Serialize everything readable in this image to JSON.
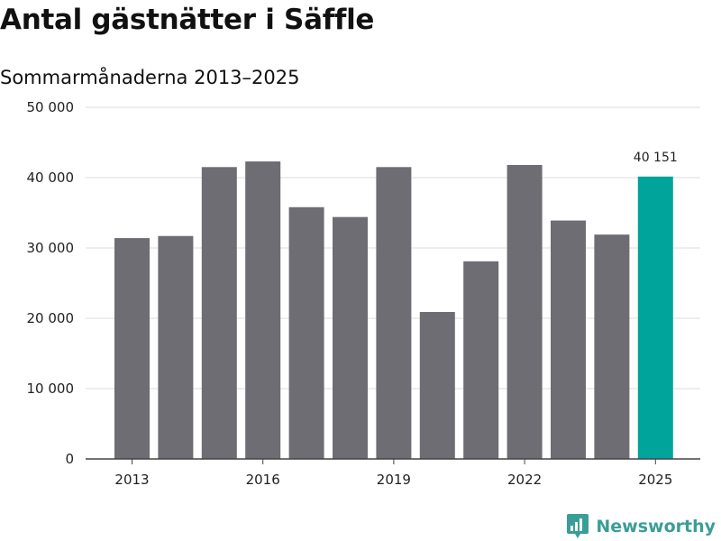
{
  "title": "Antal gästnätter i Säffle",
  "subtitle": "Sommarmånaderna 2013–2025",
  "brand": {
    "name": "Newsworthy",
    "icon": "newsworthy-logo-icon",
    "color": "#3a9e96"
  },
  "colors": {
    "bar_default": "#6e6d73",
    "bar_highlight": "#00a49a",
    "grid": "#dddddd",
    "axis": "#444444"
  },
  "chart_data": {
    "type": "bar",
    "title": "Antal gästnätter i Säffle",
    "subtitle": "Sommarmånaderna 2013–2025",
    "xlabel": "",
    "ylabel": "",
    "categories": [
      "2013",
      "2014",
      "2015",
      "2016",
      "2017",
      "2018",
      "2019",
      "2020",
      "2021",
      "2022",
      "2023",
      "2024",
      "2025"
    ],
    "values": [
      31400,
      31700,
      41500,
      42300,
      35800,
      34400,
      41500,
      20900,
      28100,
      41800,
      33900,
      31900,
      40151
    ],
    "x_tick_labels": [
      "2013",
      "2016",
      "2019",
      "2022",
      "2025"
    ],
    "y_tick_values": [
      0,
      10000,
      20000,
      30000,
      40000,
      50000
    ],
    "y_tick_labels": [
      "0",
      "10 000",
      "20 000",
      "30 000",
      "40 000",
      "50 000"
    ],
    "ylim": [
      0,
      50000
    ],
    "grid": true,
    "highlight_category": "2025",
    "annotations": [
      {
        "category": "2025",
        "text": "40 151"
      }
    ]
  }
}
